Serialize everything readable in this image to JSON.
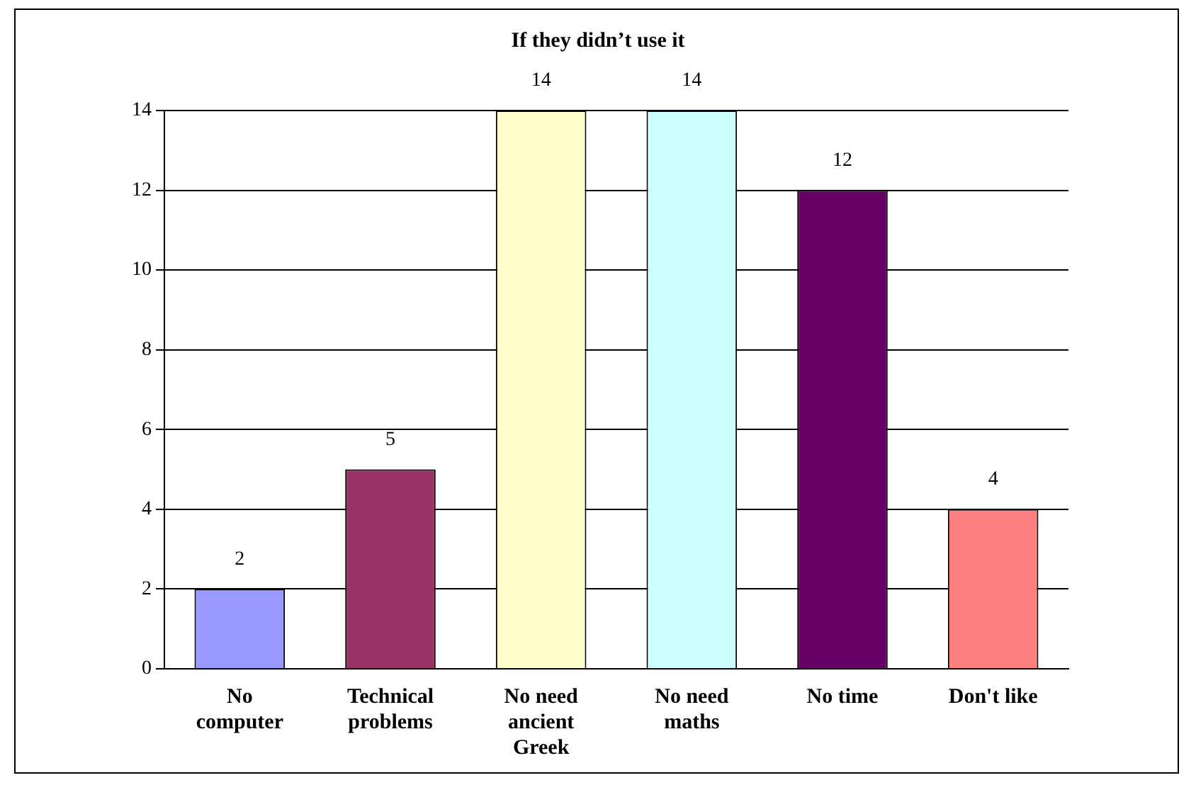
{
  "chart_data": {
    "type": "bar",
    "title": "If they didn’t use it",
    "categories": [
      "No computer",
      "Technical problems",
      "No need ancient Greek",
      "No need maths",
      "No time",
      "Don't like"
    ],
    "values": [
      2,
      5,
      14,
      14,
      12,
      4
    ],
    "colors": [
      "#9999ff",
      "#993366",
      "#ffffcc",
      "#ccffff",
      "#660066",
      "#ff8080"
    ],
    "ylim": [
      0,
      14
    ],
    "yticks": [
      0,
      2,
      4,
      6,
      8,
      10,
      12,
      14
    ],
    "grid": "y",
    "legend": false,
    "data_labels": true
  }
}
